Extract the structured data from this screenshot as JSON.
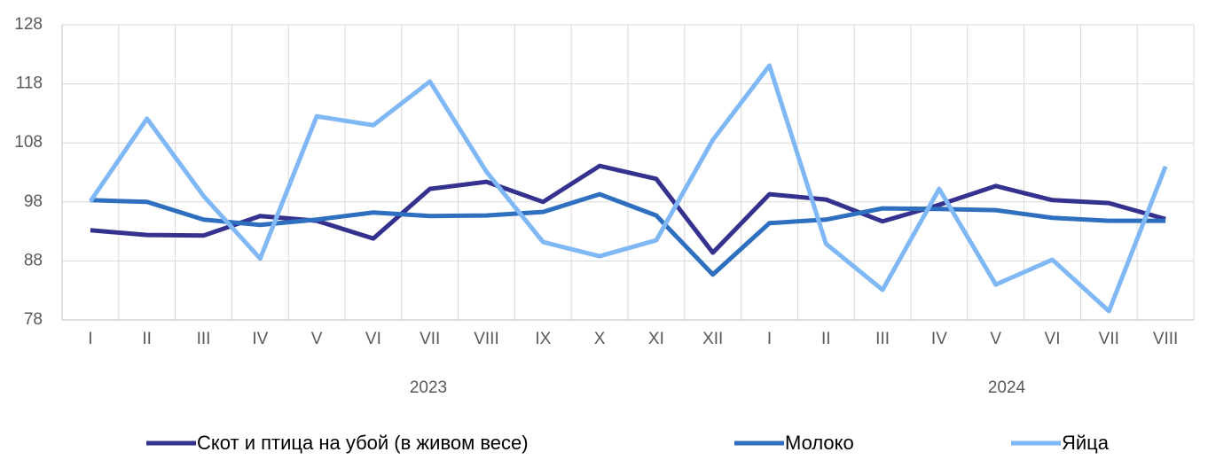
{
  "chart_data": {
    "type": "line",
    "categories": [
      "I",
      "II",
      "III",
      "IV",
      "V",
      "VI",
      "VII",
      "VIII",
      "IX",
      "X",
      "XI",
      "XII",
      "I",
      "II",
      "III",
      "IV",
      "V",
      "VI",
      "VII",
      "VIII"
    ],
    "groups": [
      "2023",
      "2024"
    ],
    "series": [
      {
        "name": "Скот и птица на убой (в живом весе)",
        "color": "#35318f",
        "values": [
          93.2,
          92.4,
          92.3,
          95.6,
          94.8,
          91.8,
          100.2,
          101.4,
          98.0,
          104.1,
          101.9,
          89.4,
          99.3,
          98.4,
          94.7,
          97.5,
          100.7,
          98.3,
          97.8,
          95.1
        ]
      },
      {
        "name": "Молоко",
        "color": "#2f6fbf",
        "values": [
          98.3,
          98.0,
          95.0,
          94.1,
          95.0,
          96.2,
          95.6,
          95.7,
          96.3,
          99.3,
          95.7,
          85.7,
          94.4,
          95.0,
          96.9,
          96.8,
          96.6,
          95.3,
          94.8,
          94.8
        ]
      },
      {
        "name": "Яйца",
        "color": "#7fb8f5",
        "values": [
          98.1,
          112.1,
          99.0,
          88.4,
          112.5,
          111.0,
          118.4,
          103.1,
          91.2,
          88.8,
          91.5,
          108.5,
          121.1,
          90.9,
          83.1,
          100.2,
          84.0,
          88.2,
          79.5,
          104.0
        ]
      }
    ],
    "ylim": [
      78,
      128
    ],
    "yticks": [
      78,
      88,
      98,
      108,
      118,
      128
    ],
    "grid": true
  }
}
